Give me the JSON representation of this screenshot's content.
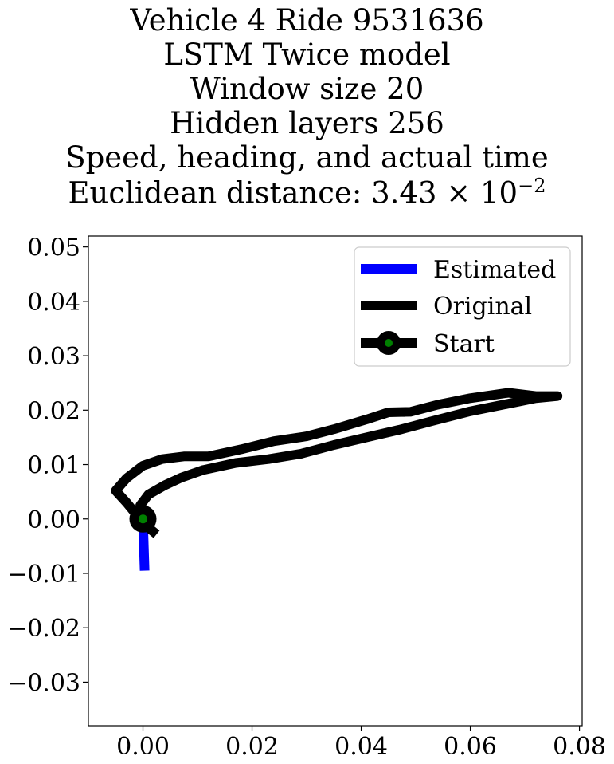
{
  "title_lines": [
    "Vehicle 4 Ride 9531636",
    "LSTM Twice model",
    "Window size 20",
    "Hidden layers 256",
    "Speed, heading, and actual time",
    "Euclidean distance: 3.43 × 10",
    "−2"
  ],
  "chart_data": {
    "type": "line",
    "xlim": [
      -0.01,
      0.0805
    ],
    "ylim": [
      -0.038,
      0.052
    ],
    "xticks": [
      0.0,
      0.02,
      0.04,
      0.06,
      0.08
    ],
    "xtick_labels": [
      "0.00",
      "0.02",
      "0.04",
      "0.06",
      "0.08"
    ],
    "yticks": [
      0.05,
      0.04,
      0.03,
      0.02,
      0.01,
      0.0,
      -0.01,
      -0.02,
      -0.03
    ],
    "ytick_labels": [
      "0.05",
      "0.04",
      "0.03",
      "0.02",
      "0.01",
      "0.00",
      "−0.01",
      "−0.02",
      "−0.03"
    ],
    "legend_position": "top-right",
    "grid": false,
    "series": [
      {
        "name": "Estimated",
        "color": "#0000ff",
        "points": [
          [
            0.0,
            0.0
          ],
          [
            0.0003,
            -0.0095
          ]
        ]
      },
      {
        "name": "Original",
        "color": "#000000",
        "points": [
          [
            0.0025,
            -0.0028
          ],
          [
            0.0,
            -0.0008
          ],
          [
            -0.0012,
            0.0008
          ],
          [
            -0.003,
            0.003
          ],
          [
            -0.005,
            0.0052
          ],
          [
            -0.003,
            0.0075
          ],
          [
            0.0,
            0.0098
          ],
          [
            0.0035,
            0.011
          ],
          [
            0.0075,
            0.0115
          ],
          [
            0.012,
            0.0115
          ],
          [
            0.018,
            0.0128
          ],
          [
            0.024,
            0.0143
          ],
          [
            0.03,
            0.0152
          ],
          [
            0.035,
            0.0165
          ],
          [
            0.041,
            0.0183
          ],
          [
            0.045,
            0.0196
          ],
          [
            0.049,
            0.0197
          ],
          [
            0.054,
            0.021
          ],
          [
            0.06,
            0.0222
          ],
          [
            0.067,
            0.0232
          ],
          [
            0.072,
            0.0226
          ],
          [
            0.076,
            0.0226
          ],
          [
            0.072,
            0.0222
          ],
          [
            0.066,
            0.021
          ],
          [
            0.06,
            0.0198
          ],
          [
            0.053,
            0.018
          ],
          [
            0.047,
            0.0164
          ],
          [
            0.041,
            0.015
          ],
          [
            0.035,
            0.0136
          ],
          [
            0.029,
            0.012
          ],
          [
            0.023,
            0.011
          ],
          [
            0.017,
            0.0103
          ],
          [
            0.011,
            0.009
          ],
          [
            0.007,
            0.0076
          ],
          [
            0.004,
            0.0062
          ],
          [
            0.001,
            0.0045
          ],
          [
            -0.0005,
            0.0025
          ],
          [
            0.0,
            0.0
          ]
        ]
      }
    ],
    "start": {
      "name": "Start",
      "point": [
        0.0,
        0.0
      ],
      "outer_color": "#000000",
      "inner_color": "#008000"
    }
  }
}
